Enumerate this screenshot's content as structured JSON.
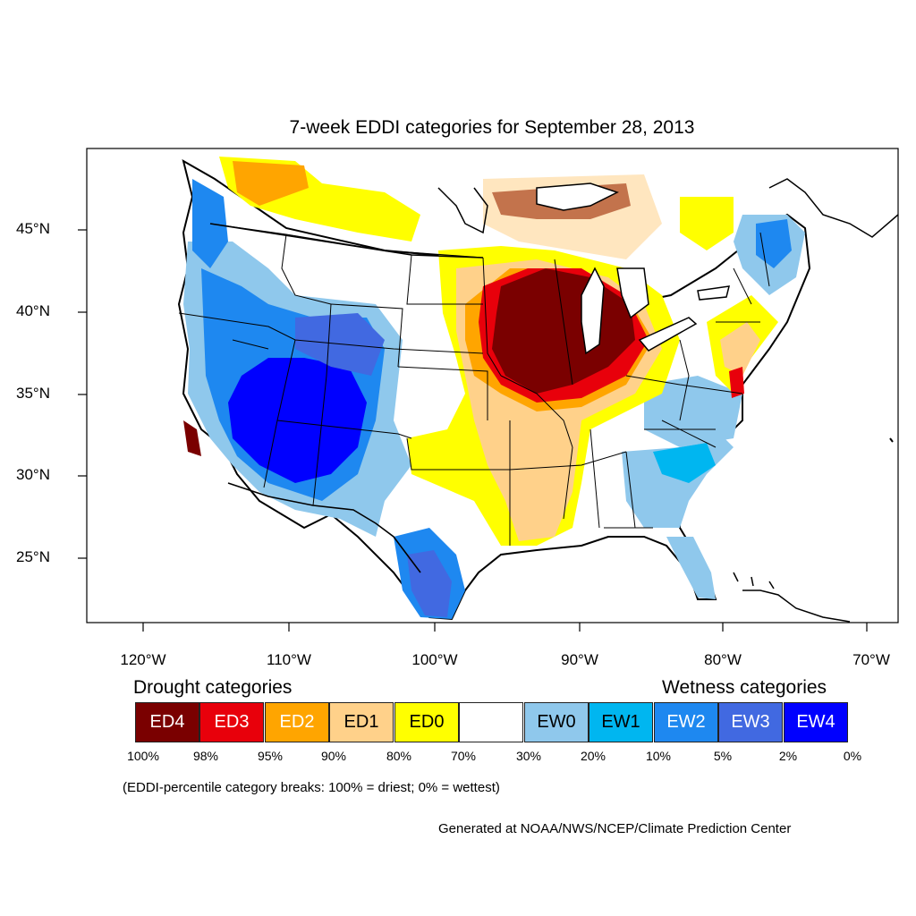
{
  "title": "7-week EDDI categories for September 28, 2013",
  "lat_labels": [
    "45°N",
    "40°N",
    "35°N",
    "30°N",
    "25°N"
  ],
  "lon_labels": [
    "120°W",
    "110°W",
    "100°W",
    "90°W",
    "80°W",
    "70°W"
  ],
  "legend": {
    "drought_heading": "Drought categories",
    "wetness_heading": "Wetness categories",
    "categories": [
      {
        "label": "ED4",
        "color": "#7a0000",
        "text_color": "#ffffff"
      },
      {
        "label": "ED3",
        "color": "#e8000b",
        "text_color": "#ffffff"
      },
      {
        "label": "ED2",
        "color": "#ffa500",
        "text_color": "#ffffff"
      },
      {
        "label": "ED1",
        "color": "#ffd18a",
        "text_color": "#000000"
      },
      {
        "label": "ED0",
        "color": "#ffff00",
        "text_color": "#000000"
      },
      {
        "label": "",
        "color": "#ffffff",
        "text_color": "#000000"
      },
      {
        "label": "EW0",
        "color": "#8fc8ec",
        "text_color": "#000000"
      },
      {
        "label": "EW1",
        "color": "#00b6f0",
        "text_color": "#000000"
      },
      {
        "label": "EW2",
        "color": "#1e88f0",
        "text_color": "#ffffff"
      },
      {
        "label": "EW3",
        "color": "#4169e1",
        "text_color": "#ffffff"
      },
      {
        "label": "EW4",
        "color": "#0000ff",
        "text_color": "#ffffff"
      }
    ],
    "breaks": [
      "100%",
      "98%",
      "95%",
      "90%",
      "80%",
      "70%",
      "30%",
      "20%",
      "10%",
      "5%",
      "2%",
      "0%"
    ]
  },
  "note": "(EDDI-percentile category breaks: 100% = driest; 0% = wettest)",
  "credit": "Generated at NOAA/NWS/NCEP/Climate Prediction Center"
}
